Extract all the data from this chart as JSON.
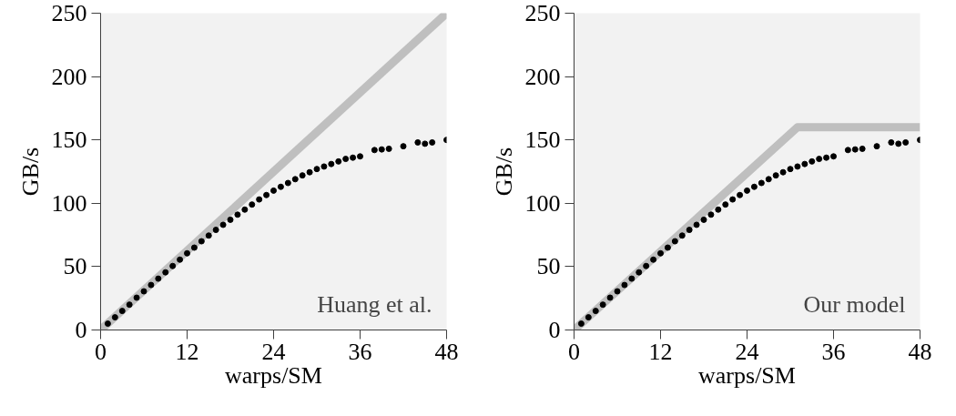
{
  "chart_data": [
    {
      "type": "scatter",
      "xlabel": "warps/SM",
      "ylabel": "GB/s",
      "annotations": [
        "Huang et al."
      ],
      "xlim": [
        0,
        48
      ],
      "ylim": [
        0,
        250
      ],
      "xticks": [
        0,
        12,
        24,
        36,
        48
      ],
      "yticks": [
        0,
        50,
        100,
        150,
        200,
        250
      ],
      "grid": false,
      "series": [
        {
          "type": "line",
          "marker": "none",
          "color": "#bfbfbf",
          "x": [
            0,
            48
          ],
          "values": [
            0,
            250
          ]
        },
        {
          "marker": "circle",
          "color": "#000000",
          "x": [
            1,
            2,
            3,
            4,
            5,
            6,
            7,
            8,
            9,
            10,
            11,
            12,
            13,
            14,
            15,
            16,
            17,
            18,
            19,
            20,
            21,
            22,
            23,
            24,
            25,
            26,
            27,
            28,
            29,
            30,
            31,
            32,
            33,
            34,
            35,
            36,
            38,
            39,
            40,
            42,
            44,
            45,
            46,
            48
          ],
          "values": [
            5,
            10,
            15,
            20,
            25.5,
            30.5,
            35.5,
            40.5,
            45.5,
            50.5,
            55.5,
            60.5,
            65,
            70,
            74.5,
            79,
            83,
            87,
            91,
            95,
            99,
            103,
            106.5,
            110,
            113,
            116,
            119,
            122,
            124.5,
            127,
            129,
            131,
            133,
            135,
            136,
            137,
            142,
            142.5,
            143,
            145,
            148,
            147,
            148,
            150
          ]
        }
      ]
    },
    {
      "type": "scatter",
      "xlabel": "warps/SM",
      "ylabel": "GB/s",
      "annotations": [
        "Our model"
      ],
      "xlim": [
        0,
        48
      ],
      "ylim": [
        0,
        250
      ],
      "xticks": [
        0,
        12,
        24,
        36,
        48
      ],
      "yticks": [
        0,
        50,
        100,
        150,
        200,
        250
      ],
      "grid": false,
      "series": [
        {
          "type": "line",
          "marker": "none",
          "color": "#bfbfbf",
          "x": [
            0,
            31,
            48
          ],
          "values": [
            0,
            160,
            160
          ]
        },
        {
          "marker": "circle",
          "color": "#000000",
          "x": [
            1,
            2,
            3,
            4,
            5,
            6,
            7,
            8,
            9,
            10,
            11,
            12,
            13,
            14,
            15,
            16,
            17,
            18,
            19,
            20,
            21,
            22,
            23,
            24,
            25,
            26,
            27,
            28,
            29,
            30,
            31,
            32,
            33,
            34,
            35,
            36,
            38,
            39,
            40,
            42,
            44,
            45,
            46,
            48
          ],
          "values": [
            5,
            10,
            15,
            20,
            25.5,
            30.5,
            35.5,
            40.5,
            45.5,
            50.5,
            55.5,
            60.5,
            65,
            70,
            74.5,
            79,
            83,
            87,
            91,
            95,
            99,
            103,
            106.5,
            110,
            113,
            116,
            119,
            122,
            124.5,
            127,
            129,
            131,
            133,
            135,
            136,
            137,
            142,
            142.5,
            143,
            145,
            148,
            147,
            148,
            150
          ]
        }
      ]
    }
  ]
}
